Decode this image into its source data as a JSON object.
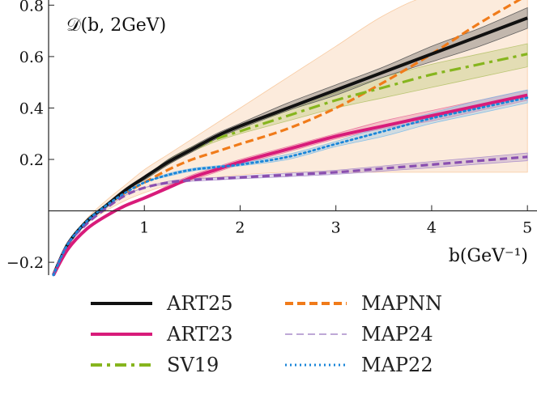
{
  "chart_data": {
    "type": "line",
    "title": "",
    "annotation": "𝒟(b, 2GeV)",
    "xlabel": "b(GeV⁻¹)",
    "ylabel": "",
    "xlim": [
      0.0,
      5.1
    ],
    "ylim": [
      -0.25,
      0.82
    ],
    "xticks": [
      1,
      2,
      3,
      4,
      5
    ],
    "yticks": [
      -0.2,
      0.2,
      0.4,
      0.6,
      0.8
    ],
    "xtick_labels": [
      "1",
      "2",
      "3",
      "4",
      "5"
    ],
    "ytick_labels": [
      "−0.2",
      "0.2",
      "0.4",
      "0.6",
      "0.8"
    ],
    "grid": false,
    "legend_position": "bottom",
    "x": [
      0.05,
      0.2,
      0.4,
      0.6,
      0.8,
      1.0,
      1.25,
      1.5,
      1.75,
      2.0,
      2.5,
      3.0,
      3.5,
      4.0,
      4.5,
      5.0
    ],
    "series": [
      {
        "name": "ART25",
        "color": "#111111",
        "style": "solid",
        "values": [
          -0.25,
          -0.13,
          -0.04,
          0.02,
          0.08,
          0.13,
          0.19,
          0.24,
          0.29,
          0.33,
          0.4,
          0.47,
          0.54,
          0.61,
          0.68,
          0.75
        ],
        "band_low": [
          -0.25,
          -0.13,
          -0.04,
          0.02,
          0.08,
          0.12,
          0.18,
          0.23,
          0.28,
          0.32,
          0.39,
          0.45,
          0.52,
          0.58,
          0.64,
          0.71
        ],
        "band_high": [
          -0.25,
          -0.13,
          -0.04,
          0.02,
          0.08,
          0.13,
          0.2,
          0.25,
          0.3,
          0.34,
          0.42,
          0.49,
          0.56,
          0.64,
          0.71,
          0.79
        ],
        "band_color": "#555555"
      },
      {
        "name": "ART23",
        "color": "#d81b7a",
        "style": "solid",
        "values": [
          -0.25,
          -0.15,
          -0.07,
          -0.02,
          0.02,
          0.05,
          0.09,
          0.13,
          0.16,
          0.19,
          0.24,
          0.29,
          0.33,
          0.37,
          0.41,
          0.45
        ],
        "band_low": [
          -0.25,
          -0.15,
          -0.07,
          -0.02,
          0.02,
          0.05,
          0.09,
          0.12,
          0.15,
          0.18,
          0.23,
          0.28,
          0.32,
          0.35,
          0.39,
          0.43
        ],
        "band_high": [
          -0.25,
          -0.15,
          -0.07,
          -0.02,
          0.02,
          0.05,
          0.1,
          0.14,
          0.17,
          0.2,
          0.25,
          0.3,
          0.35,
          0.39,
          0.43,
          0.47
        ],
        "band_color": "#e8709c"
      },
      {
        "name": "SV19",
        "color": "#86b51e",
        "style": "dashdot",
        "values": [
          -0.25,
          -0.13,
          -0.04,
          0.02,
          0.08,
          0.13,
          0.19,
          0.24,
          0.28,
          0.31,
          0.37,
          0.43,
          0.48,
          0.53,
          0.57,
          0.61
        ],
        "band_low": [
          -0.25,
          -0.13,
          -0.04,
          0.02,
          0.08,
          0.12,
          0.18,
          0.23,
          0.27,
          0.3,
          0.35,
          0.4,
          0.44,
          0.48,
          0.52,
          0.56
        ],
        "band_high": [
          -0.25,
          -0.13,
          -0.04,
          0.02,
          0.08,
          0.13,
          0.2,
          0.25,
          0.29,
          0.33,
          0.39,
          0.46,
          0.52,
          0.57,
          0.61,
          0.65
        ],
        "band_color": "#b5c26a"
      },
      {
        "name": "MAPNN",
        "color": "#f07b1a",
        "style": "dashed",
        "values": [
          -0.25,
          -0.13,
          -0.04,
          0.02,
          0.07,
          0.11,
          0.16,
          0.2,
          0.23,
          0.26,
          0.32,
          0.4,
          0.5,
          0.61,
          0.73,
          0.86
        ],
        "band_low": [
          -0.25,
          -0.13,
          -0.05,
          0.0,
          0.04,
          0.07,
          0.1,
          0.12,
          0.13,
          0.14,
          0.15,
          0.15,
          0.15,
          0.15,
          0.15,
          0.15
        ],
        "band_high": [
          -0.25,
          -0.13,
          -0.03,
          0.04,
          0.1,
          0.16,
          0.22,
          0.28,
          0.34,
          0.4,
          0.52,
          0.64,
          0.76,
          0.86,
          0.95,
          1.0
        ],
        "band_color": "#f7c79a"
      },
      {
        "name": "MAP24",
        "color": "#8a4fb0",
        "style": "dashed-thin",
        "values": [
          -0.25,
          -0.13,
          -0.05,
          0.01,
          0.06,
          0.09,
          0.11,
          0.12,
          0.125,
          0.13,
          0.14,
          0.15,
          0.165,
          0.18,
          0.195,
          0.21
        ],
        "band_low": [
          -0.25,
          -0.13,
          -0.05,
          0.01,
          0.06,
          0.09,
          0.105,
          0.115,
          0.12,
          0.125,
          0.133,
          0.142,
          0.155,
          0.168,
          0.182,
          0.195
        ],
        "band_high": [
          -0.25,
          -0.13,
          -0.05,
          0.01,
          0.06,
          0.09,
          0.115,
          0.125,
          0.13,
          0.135,
          0.147,
          0.158,
          0.175,
          0.192,
          0.208,
          0.225
        ],
        "band_color": "#a98bc9"
      },
      {
        "name": "MAP22",
        "color": "#1a86d9",
        "style": "dotted",
        "values": [
          -0.25,
          -0.13,
          -0.04,
          0.02,
          0.07,
          0.11,
          0.14,
          0.16,
          0.17,
          0.18,
          0.21,
          0.26,
          0.31,
          0.36,
          0.4,
          0.44
        ],
        "band_low": [
          -0.25,
          -0.13,
          -0.04,
          0.02,
          0.07,
          0.11,
          0.135,
          0.155,
          0.165,
          0.175,
          0.2,
          0.25,
          0.29,
          0.34,
          0.38,
          0.42
        ],
        "band_high": [
          -0.25,
          -0.13,
          -0.04,
          0.02,
          0.07,
          0.11,
          0.145,
          0.165,
          0.175,
          0.185,
          0.22,
          0.27,
          0.33,
          0.38,
          0.43,
          0.47
        ],
        "band_color": "#7fbde8"
      }
    ]
  }
}
